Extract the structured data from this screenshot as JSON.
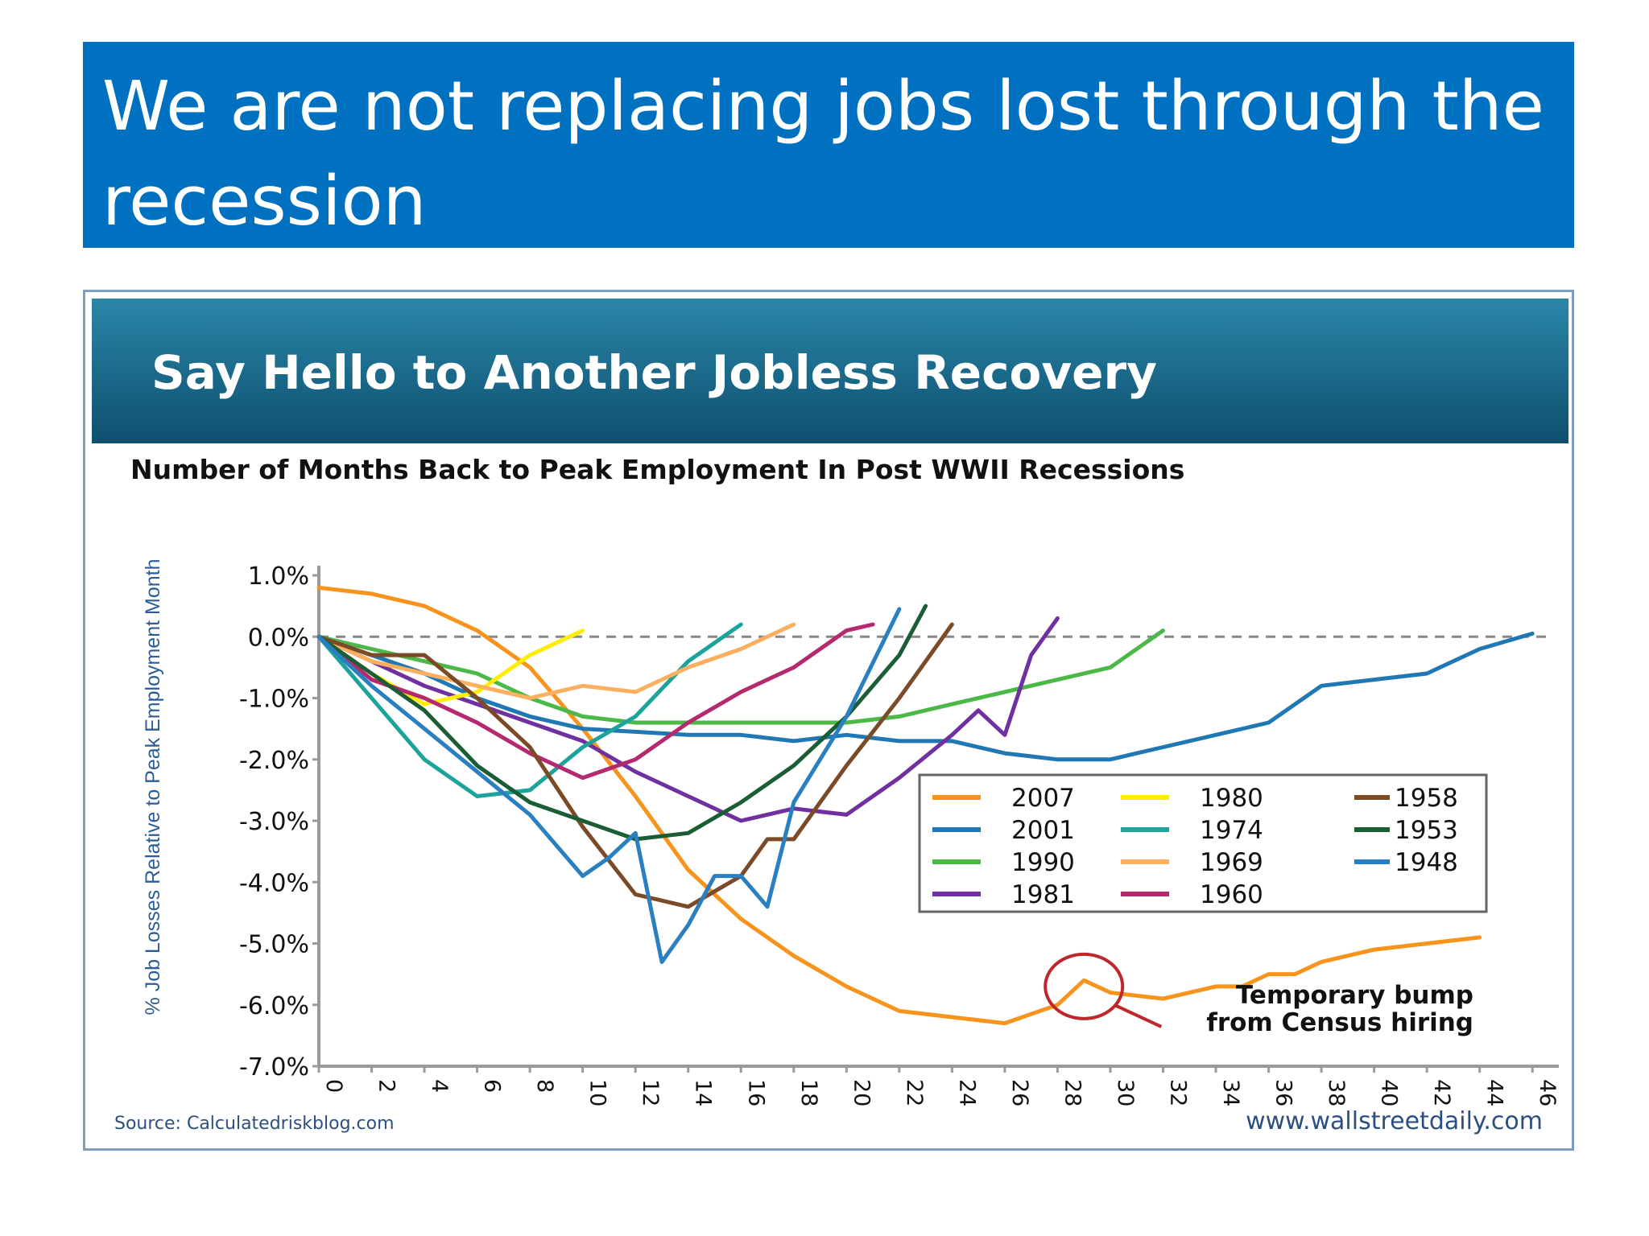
{
  "slide": {
    "title": "We are not replacing jobs lost through the recession"
  },
  "colors": {
    "header_bg": "#0070c0",
    "banner_bg": "#1a6a8c",
    "y2007": "#f7941d",
    "y2001": "#1f78b4",
    "y1990": "#4cb848",
    "y1981": "#7030a0",
    "y1980": "#ffee00",
    "y1974": "#1ba39c",
    "y1969": "#fbb060",
    "y1960": "#b5296e",
    "y1958": "#7b4a26",
    "y1953": "#1b5e35",
    "y1948": "#2a7fc0"
  },
  "chart_data": {
    "type": "line",
    "banner": "Say Hello to Another Jobless Recovery",
    "title": "Number of Months Back to Peak Employment In Post WWII Recessions",
    "ylabel": "% Job Losses Relative to Peak Employment Month",
    "xlabel": "",
    "ylim": [
      -7.0,
      1.0
    ],
    "xlim": [
      0,
      47
    ],
    "yticks": [
      "1.0%",
      "0.0%",
      "-1.0%",
      "-2.0%",
      "-3.0%",
      "-4.0%",
      "-5.0%",
      "-6.0%",
      "-7.0%"
    ],
    "xticks": [
      "0",
      "2",
      "4",
      "6",
      "8",
      "10",
      "12",
      "14",
      "16",
      "18",
      "20",
      "22",
      "24",
      "26",
      "28",
      "30",
      "32",
      "34",
      "36",
      "38",
      "40",
      "42",
      "44",
      "46"
    ],
    "reference_line": 0,
    "legend_position": "center-right",
    "series": [
      {
        "name": "2007",
        "color": "#f7941d",
        "x": [
          0,
          2,
          4,
          6,
          8,
          10,
          12,
          14,
          16,
          18,
          20,
          22,
          24,
          26,
          28,
          29,
          30,
          32,
          34,
          35,
          36,
          37,
          38,
          40,
          42,
          44
        ],
        "y": [
          0.8,
          0.7,
          0.5,
          0.1,
          -0.5,
          -1.5,
          -2.6,
          -3.8,
          -4.6,
          -5.2,
          -5.7,
          -6.1,
          -6.2,
          -6.3,
          -6.0,
          -5.6,
          -5.8,
          -5.9,
          -5.7,
          -5.7,
          -5.5,
          -5.5,
          -5.3,
          -5.1,
          -5.0,
          -4.9
        ]
      },
      {
        "name": "2001",
        "color": "#1f78b4",
        "x": [
          0,
          2,
          4,
          6,
          8,
          10,
          12,
          14,
          16,
          18,
          20,
          22,
          24,
          26,
          28,
          30,
          31,
          32,
          34,
          36,
          38,
          40,
          42,
          44,
          46
        ],
        "y": [
          0,
          -0.3,
          -0.6,
          -1.0,
          -1.3,
          -1.5,
          -1.55,
          -1.6,
          -1.6,
          -1.7,
          -1.6,
          -1.7,
          -1.7,
          -1.9,
          -2.0,
          -2.0,
          -1.9,
          -1.8,
          -1.6,
          -1.4,
          -0.8,
          -0.7,
          -0.6,
          -0.2,
          0.05
        ]
      },
      {
        "name": "1990",
        "color": "#4cb848",
        "x": [
          0,
          2,
          4,
          6,
          8,
          10,
          12,
          14,
          16,
          18,
          20,
          22,
          24,
          26,
          28,
          30,
          32
        ],
        "y": [
          0,
          -0.2,
          -0.4,
          -0.6,
          -1.0,
          -1.3,
          -1.4,
          -1.4,
          -1.4,
          -1.4,
          -1.4,
          -1.3,
          -1.1,
          -0.9,
          -0.7,
          -0.5,
          0.1
        ]
      },
      {
        "name": "1981",
        "color": "#7030a0",
        "x": [
          0,
          2,
          4,
          6,
          8,
          10,
          12,
          14,
          16,
          18,
          20,
          22,
          24,
          25,
          26,
          27,
          28
        ],
        "y": [
          0,
          -0.4,
          -0.8,
          -1.1,
          -1.4,
          -1.7,
          -2.2,
          -2.6,
          -3.0,
          -2.8,
          -2.9,
          -2.3,
          -1.6,
          -1.2,
          -1.6,
          -0.3,
          0.3
        ]
      },
      {
        "name": "1980",
        "color": "#ffee00",
        "x": [
          0,
          2,
          4,
          6,
          7,
          8,
          9,
          10
        ],
        "y": [
          0,
          -0.6,
          -1.1,
          -0.9,
          -0.6,
          -0.3,
          -0.1,
          0.1
        ]
      },
      {
        "name": "1974",
        "color": "#1ba39c",
        "x": [
          0,
          2,
          4,
          6,
          8,
          10,
          12,
          14,
          16
        ],
        "y": [
          0,
          -1.0,
          -2.0,
          -2.6,
          -2.5,
          -1.8,
          -1.3,
          -0.4,
          0.2
        ]
      },
      {
        "name": "1969",
        "color": "#fbb060",
        "x": [
          0,
          2,
          4,
          6,
          8,
          10,
          12,
          14,
          16,
          18
        ],
        "y": [
          0,
          -0.4,
          -0.6,
          -0.8,
          -1.0,
          -0.8,
          -0.9,
          -0.5,
          -0.2,
          0.2
        ]
      },
      {
        "name": "1960",
        "color": "#b5296e",
        "x": [
          0,
          2,
          4,
          6,
          8,
          10,
          12,
          14,
          16,
          18,
          20,
          21
        ],
        "y": [
          0,
          -0.7,
          -1.0,
          -1.4,
          -1.9,
          -2.3,
          -2.0,
          -1.4,
          -0.9,
          -0.5,
          0.1,
          0.2
        ]
      },
      {
        "name": "1958",
        "color": "#7b4a26",
        "x": [
          0,
          2,
          4,
          6,
          8,
          10,
          12,
          14,
          16,
          17,
          18,
          20,
          22,
          24
        ],
        "y": [
          0,
          -0.3,
          -0.3,
          -1.0,
          -1.8,
          -3.1,
          -4.2,
          -4.4,
          -3.9,
          -3.3,
          -3.3,
          -2.1,
          -1.0,
          0.2
        ]
      },
      {
        "name": "1953",
        "color": "#1b5e35",
        "x": [
          0,
          2,
          4,
          6,
          8,
          10,
          12,
          14,
          16,
          18,
          20,
          22,
          23
        ],
        "y": [
          0,
          -0.6,
          -1.2,
          -2.1,
          -2.7,
          -3.0,
          -3.3,
          -3.2,
          -2.7,
          -2.1,
          -1.3,
          -0.3,
          0.5
        ]
      },
      {
        "name": "1948",
        "color": "#2a7fc0",
        "x": [
          0,
          2,
          4,
          6,
          8,
          10,
          11,
          12,
          13,
          14,
          15,
          16,
          17,
          18,
          20,
          22
        ],
        "y": [
          0,
          -0.8,
          -1.5,
          -2.2,
          -2.9,
          -3.9,
          -3.6,
          -3.2,
          -5.3,
          -4.7,
          -3.9,
          -3.9,
          -4.4,
          -2.7,
          -1.3,
          0.45
        ]
      }
    ],
    "annotation": "Temporary bump from Census hiring",
    "annotation_point": {
      "x": 29,
      "y": -5.7
    },
    "source": "Source: Calculatedriskblog.com",
    "credit": "www.wallstreetdaily.com"
  }
}
